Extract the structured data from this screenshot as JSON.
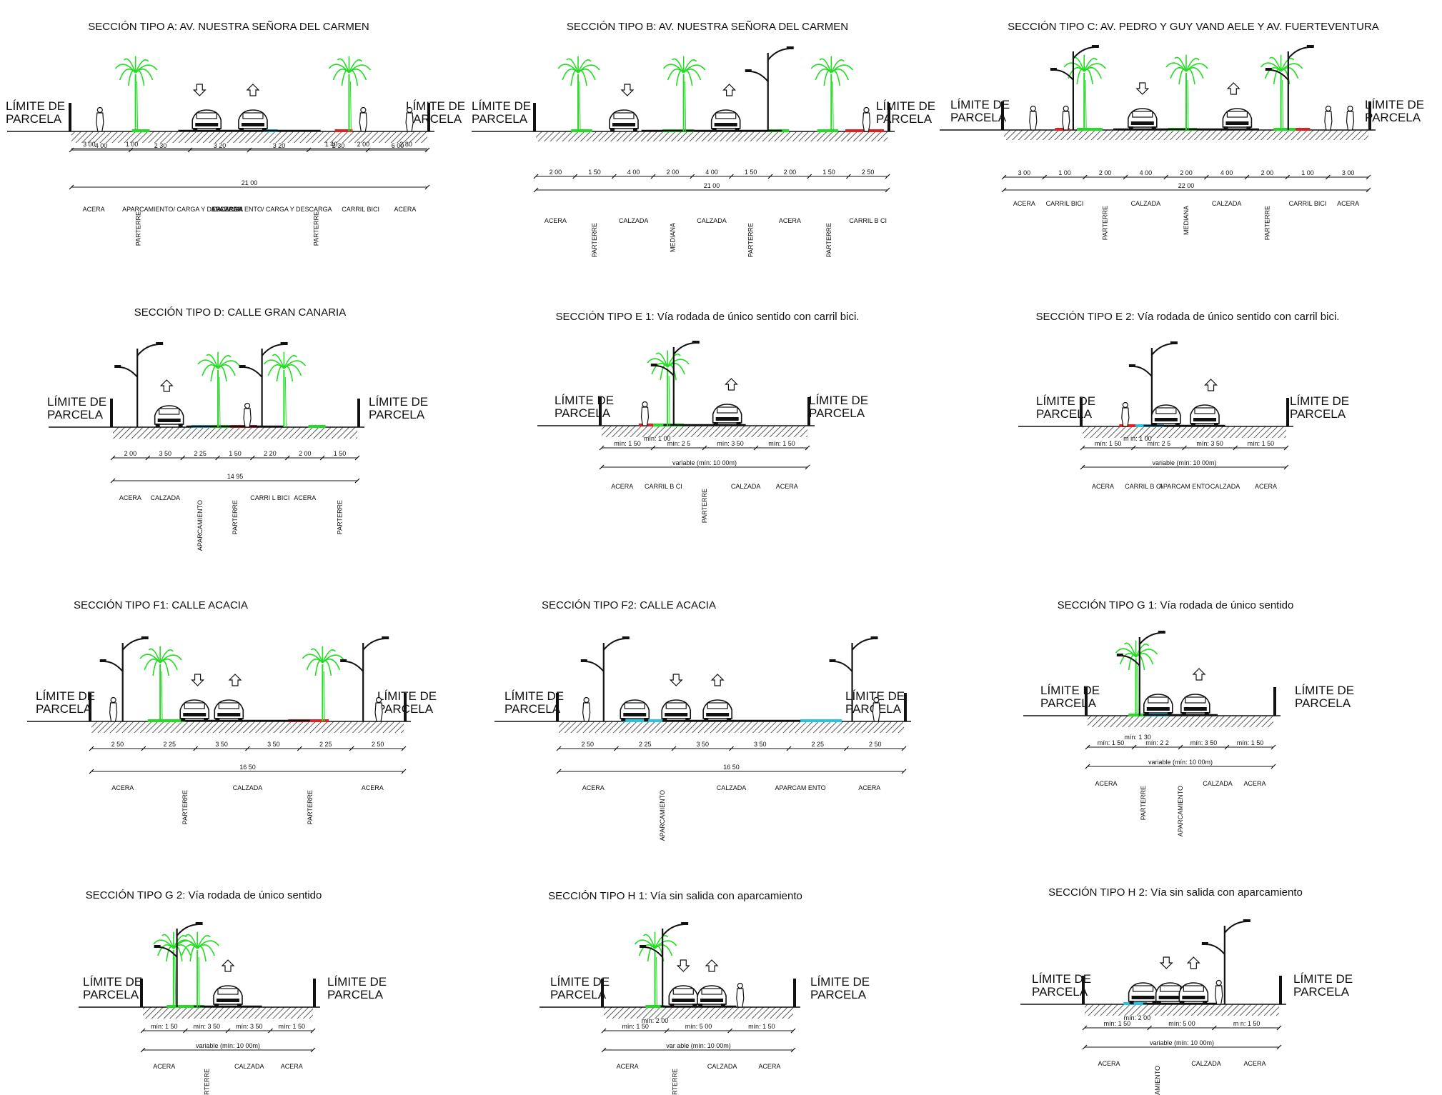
{
  "common": {
    "limit_label_line1": "LÍMITE DE",
    "limit_label_line2": "PARCELA"
  },
  "colors": {
    "planting": "#22dd22",
    "bike_lane": "#e02020",
    "parking": "#27c4df",
    "ink": "#111111"
  },
  "sections": [
    {
      "id": "A",
      "title": "SECCIÓN TIPO  A: AV. NUESTRA SEÑORA DEL CARMEN",
      "partial_dims": [
        "3 00",
        "1 00",
        "1 40",
        "2 00",
        "2 80"
      ],
      "dims": [
        "4 00",
        "2 30",
        "3 20",
        "3 20",
        "2 30",
        "6 00"
      ],
      "total": "21 00",
      "zones": [
        "ACERA",
        "PARTERRE",
        "APARCAMIENTO/ CARGA Y DESCARGA",
        "CALZADA",
        "APARCAM ENTO/ CARGA Y DESCARGA",
        "PARTERRE",
        "CARRIL BICI",
        "ACERA"
      ]
    },
    {
      "id": "B",
      "title": "SECCIÓN TIPO  B: AV. NUESTRA SEÑORA DEL CARMEN",
      "dims": [
        "2 00",
        "1 50",
        "4 00",
        "2 00",
        "4 00",
        "1 50",
        "2 00",
        "1 50",
        "2 50"
      ],
      "total": "21 00",
      "zones": [
        "ACERA",
        "PARTERRE",
        "CALZADA",
        "MEDIANA",
        "CALZADA",
        "PARTERRE",
        "ACERA",
        "PARTERRE",
        "CARRIL B CI"
      ]
    },
    {
      "id": "C",
      "title": "SECCIÓN TIPO  C: AV. PEDRO Y GUY VAND AELE  Y AV. FUERTEVENTURA",
      "dims": [
        "3 00",
        "1 00",
        "2 00",
        "4 00",
        "2 00",
        "4 00",
        "2 00",
        "1 00",
        "3 00"
      ],
      "total": "22 00",
      "zones": [
        "ACERA",
        "CARRIL BICI",
        "PARTERRE",
        "CALZADA",
        "MEDIANA",
        "CALZADA",
        "PARTERRE",
        "CARRIL BICI",
        "ACERA"
      ]
    },
    {
      "id": "D",
      "title": "SECCIÓN TIPO  D: CALLE GRAN CANARIA",
      "dims": [
        "2 00",
        "3 50",
        "2 25",
        "1 50",
        "2 20",
        "2 00",
        "1 50"
      ],
      "total": "14 95",
      "zones": [
        "ACERA",
        "CALZADA",
        "APARCAMIENTO",
        "PARTERRE",
        "CARRI L BICI",
        "ACERA",
        "PARTERRE"
      ]
    },
    {
      "id": "E1",
      "title": "SECCIÓN TIPO E 1: Vía rodada de único sentido con carril bici.",
      "sub_dim": "mín: 1 00",
      "dims": [
        "mín: 1 50",
        "mín: 2 5",
        "mín: 3 50",
        "mín: 1 50"
      ],
      "total": "variable (mín: 10 00m)",
      "zones": [
        "ACERA",
        "CARRIL B CI",
        "PARTERRE",
        "CALZADA",
        "ACERA"
      ]
    },
    {
      "id": "E2",
      "title": "SECCIÓN TIPO E 2: Vía rodada de único sentido con carril bici.",
      "sub_dim": "m in: 1 00",
      "dims": [
        "mín: 1 50",
        "mín: 2 5",
        "mín: 3 50",
        "mín: 1 50"
      ],
      "total": "variable (mín: 10 00m)",
      "zones": [
        "ACERA",
        "CARRIL B CI",
        "APARCAM ENTO",
        "CALZADA",
        "ACERA"
      ]
    },
    {
      "id": "F1",
      "title": "SECCIÓN TIPO  F1: CALLE ACACIA",
      "dims": [
        "2 50",
        "2 25",
        "3 50",
        "3 50",
        "2 25",
        "2 50"
      ],
      "total": "16 50",
      "zones": [
        "ACERA",
        "PARTERRE",
        "CALZADA",
        "PARTERRE",
        "ACERA"
      ]
    },
    {
      "id": "F2",
      "title": "SECCIÓN TIPO  F2: CALLE ACACIA",
      "dims": [
        "2 50",
        "2 25",
        "3 50",
        "3 50",
        "2 25",
        "2 50"
      ],
      "total": "16 50",
      "zones": [
        "ACERA",
        "APARCAMIENTO",
        "CALZADA",
        "APARCAM ENTO",
        "ACERA"
      ]
    },
    {
      "id": "G1",
      "title": "SECCIÓN TIPO G 1: Vía rodada de único sentido",
      "sub_dim": "mín: 1 30",
      "dims": [
        "mín: 1 50",
        "mín: 2 2",
        "mín: 3 50",
        "mín: 1 50"
      ],
      "total": "variable (mín: 10 00m)",
      "zones": [
        "ACERA",
        "PARTERRE",
        "APARCAMIENTO",
        "CALZADA",
        "ACERA"
      ]
    },
    {
      "id": "G2",
      "title": "SECCIÓN TIPO G 2: Vía rodada de único sentido",
      "dims": [
        "mín: 1 50",
        "mín: 3 50",
        "mín: 3 50",
        "mín: 1 50"
      ],
      "total": "variable (mín: 10 00m)",
      "zones": [
        "ACERA",
        "PARTERRE",
        "CALZADA",
        "ACERA"
      ]
    },
    {
      "id": "H1",
      "title": "SECCIÓN TIPO H 1: Vía sin salida con aparcamiento",
      "sub_dim": "mín: 2 00",
      "dims": [
        "mín: 1 50",
        "mín: 5 00",
        "mín: 1 50"
      ],
      "total": "var able (mín: 10 00m)",
      "zones": [
        "ACERA",
        "PARTERRE",
        "CALZADA",
        "ACERA"
      ]
    },
    {
      "id": "H2",
      "title": "SECCIÓN TIPO H 2: Vía sin salida con aparcamiento",
      "sub_dim": "mín: 2 00",
      "dims": [
        "mín: 1 50",
        "mín: 5 00",
        "m n: 1 50"
      ],
      "total": "variable (mín: 10 00m)",
      "zones": [
        "ACERA",
        "APARCAMIENTO",
        "CALZADA",
        "ACERA"
      ]
    }
  ]
}
